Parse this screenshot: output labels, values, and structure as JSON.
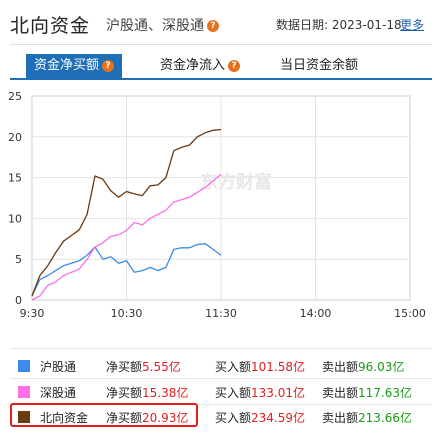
{
  "header": {
    "title": "北向资金",
    "subtitle": "沪股通、深股通",
    "date_label": "数据日期:",
    "date": "2023-01-18",
    "more_link": "更多"
  },
  "tabs": [
    {
      "label": "资金净买额",
      "active": true,
      "has_help": true
    },
    {
      "label": "资金净流入",
      "active": false,
      "has_help": true
    },
    {
      "label": "当日资金余额",
      "active": false,
      "has_help": false
    }
  ],
  "watermark": "东方财富",
  "chart_data": {
    "type": "line",
    "x_ticks": [
      "9:30",
      "10:30",
      "11:30",
      "14:00",
      "15:00"
    ],
    "ylim": [
      0,
      25
    ],
    "y_ticks": [
      "0",
      "5",
      "10",
      "15",
      "20",
      "25"
    ],
    "grid": true,
    "series": [
      {
        "name": "沪股通",
        "color": "#3b8be8",
        "x": [
          "9:30",
          "9:35",
          "9:40",
          "9:45",
          "9:50",
          "9:55",
          "10:00",
          "10:05",
          "10:10",
          "10:15",
          "10:20",
          "10:25",
          "10:30",
          "10:35",
          "10:40",
          "10:45",
          "10:50",
          "10:55",
          "11:00",
          "11:05",
          "11:10",
          "11:15",
          "11:20",
          "11:25",
          "11:30"
        ],
        "values": [
          0.5,
          2.5,
          3.0,
          3.6,
          4.2,
          4.5,
          4.8,
          5.5,
          6.5,
          5.0,
          5.3,
          4.5,
          4.8,
          3.4,
          3.6,
          4.0,
          3.6,
          4.0,
          6.2,
          6.4,
          6.4,
          6.8,
          6.9,
          6.2,
          5.5
        ]
      },
      {
        "name": "深股通",
        "color": "#ff6ee6",
        "x": [
          "9:30",
          "9:35",
          "9:40",
          "9:45",
          "9:50",
          "9:55",
          "10:00",
          "10:05",
          "10:10",
          "10:15",
          "10:20",
          "10:25",
          "10:30",
          "10:35",
          "10:40",
          "10:45",
          "10:50",
          "10:55",
          "11:00",
          "11:05",
          "11:10",
          "11:15",
          "11:20",
          "11:25",
          "11:30"
        ],
        "values": [
          0.0,
          0.5,
          1.8,
          2.2,
          3.0,
          3.4,
          3.8,
          5.0,
          6.5,
          7.0,
          7.8,
          8.0,
          8.5,
          9.5,
          9.2,
          10.0,
          10.5,
          11.0,
          12.0,
          12.3,
          12.6,
          13.2,
          13.8,
          14.6,
          15.4
        ]
      },
      {
        "name": "北向资金",
        "color": "#6b3a0e",
        "x": [
          "9:30",
          "9:35",
          "9:40",
          "9:45",
          "9:50",
          "9:55",
          "10:00",
          "10:05",
          "10:10",
          "10:15",
          "10:20",
          "10:25",
          "10:30",
          "10:35",
          "10:40",
          "10:45",
          "10:50",
          "10:55",
          "11:00",
          "11:05",
          "11:10",
          "11:15",
          "11:20",
          "11:25",
          "11:30"
        ],
        "values": [
          0.5,
          3.0,
          4.2,
          5.8,
          7.2,
          7.9,
          8.6,
          10.5,
          15.2,
          14.8,
          13.4,
          12.6,
          13.3,
          13.0,
          12.8,
          14.0,
          14.1,
          15.0,
          18.3,
          18.7,
          19.0,
          20.0,
          20.5,
          20.8,
          20.9
        ]
      }
    ]
  },
  "legend": [
    {
      "name": "沪股通",
      "color": "#3b8be8",
      "net_label": "净买额",
      "net_value": "5.55亿",
      "buy_label": "买入额",
      "buy_value": "101.58亿",
      "sell_label": "卖出额",
      "sell_value": "96.03亿",
      "highlighted": false
    },
    {
      "name": "深股通",
      "color": "#ff6ee6",
      "net_label": "净买额",
      "net_value": "15.38亿",
      "buy_label": "买入额",
      "buy_value": "133.01亿",
      "sell_label": "卖出额",
      "sell_value": "117.63亿",
      "highlighted": false
    },
    {
      "name": "北向资金",
      "color": "#6b3a0e",
      "net_label": "净买额",
      "net_value": "20.93亿",
      "buy_label": "买入额",
      "buy_value": "234.59亿",
      "sell_label": "卖出额",
      "sell_value": "213.66亿",
      "highlighted": true
    }
  ]
}
